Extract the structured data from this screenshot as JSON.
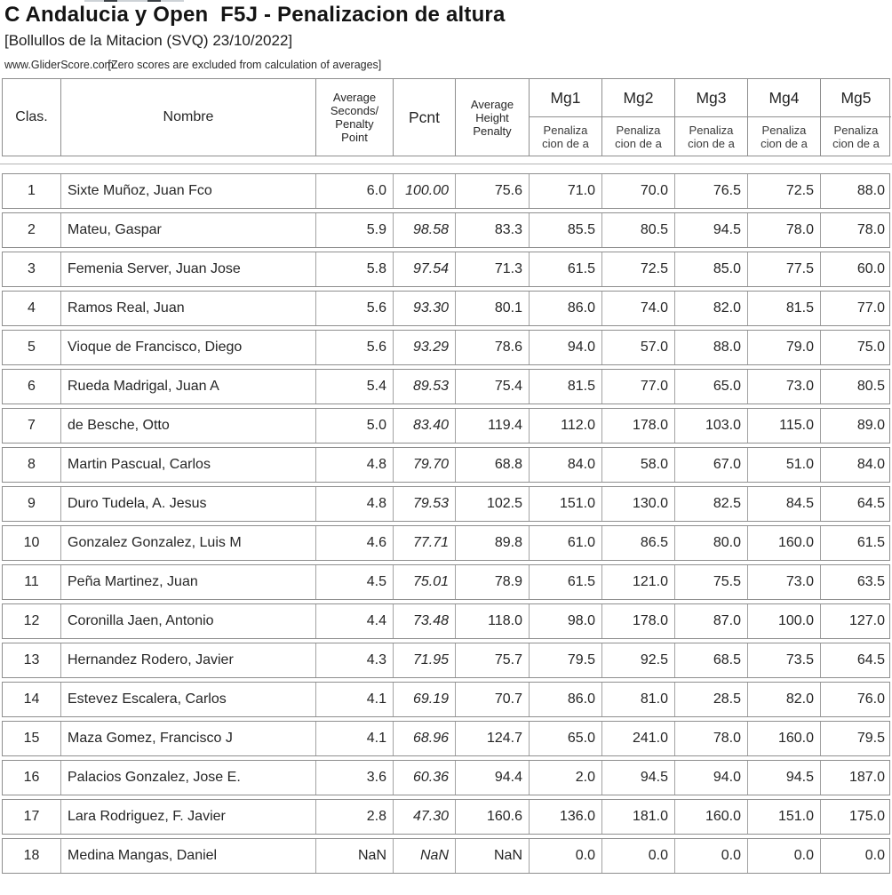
{
  "page": {
    "title": "C Andalucia y Open  F5J - Penalizacion de altura",
    "subtitle": "[Bollullos de la Mitacion (SVQ) 23/10/2022]",
    "source": "www.GliderScore.com",
    "note": "[Zero scores are excluded from calculation of averages]"
  },
  "colors": {
    "border": "#8e8e8e",
    "text": "#262626"
  },
  "table": {
    "headers": {
      "clas": "Clas.",
      "nombre": "Nombre",
      "avg_seconds": "Average\nSeconds/\nPenalty\nPoint",
      "pcnt": "Pcnt",
      "avg_height": "Average\nHeight\nPenalty",
      "mg": [
        "Mg1",
        "Mg2",
        "Mg3",
        "Mg4",
        "Mg5"
      ],
      "mg_sub": "Penaliza\ncion de a"
    },
    "rows": [
      [
        "1",
        "Sixte Muñoz, Juan Fco",
        "6.0",
        "100.00",
        "75.6",
        "71.0",
        "70.0",
        "76.5",
        "72.5",
        "88.0"
      ],
      [
        "2",
        "Mateu, Gaspar",
        "5.9",
        "98.58",
        "83.3",
        "85.5",
        "80.5",
        "94.5",
        "78.0",
        "78.0"
      ],
      [
        "3",
        "Femenia Server, Juan Jose",
        "5.8",
        "97.54",
        "71.3",
        "61.5",
        "72.5",
        "85.0",
        "77.5",
        "60.0"
      ],
      [
        "4",
        "Ramos Real, Juan",
        "5.6",
        "93.30",
        "80.1",
        "86.0",
        "74.0",
        "82.0",
        "81.5",
        "77.0"
      ],
      [
        "5",
        "Vioque de Francisco, Diego",
        "5.6",
        "93.29",
        "78.6",
        "94.0",
        "57.0",
        "88.0",
        "79.0",
        "75.0"
      ],
      [
        "6",
        "Rueda Madrigal, Juan A",
        "5.4",
        "89.53",
        "75.4",
        "81.5",
        "77.0",
        "65.0",
        "73.0",
        "80.5"
      ],
      [
        "7",
        "de Besche, Otto",
        "5.0",
        "83.40",
        "119.4",
        "112.0",
        "178.0",
        "103.0",
        "115.0",
        "89.0"
      ],
      [
        "8",
        "Martin Pascual, Carlos",
        "4.8",
        "79.70",
        "68.8",
        "84.0",
        "58.0",
        "67.0",
        "51.0",
        "84.0"
      ],
      [
        "9",
        "Duro Tudela, A. Jesus",
        "4.8",
        "79.53",
        "102.5",
        "151.0",
        "130.0",
        "82.5",
        "84.5",
        "64.5"
      ],
      [
        "10",
        "Gonzalez Gonzalez, Luis M",
        "4.6",
        "77.71",
        "89.8",
        "61.0",
        "86.5",
        "80.0",
        "160.0",
        "61.5"
      ],
      [
        "11",
        "Peña Martinez, Juan",
        "4.5",
        "75.01",
        "78.9",
        "61.5",
        "121.0",
        "75.5",
        "73.0",
        "63.5"
      ],
      [
        "12",
        "Coronilla Jaen, Antonio",
        "4.4",
        "73.48",
        "118.0",
        "98.0",
        "178.0",
        "87.0",
        "100.0",
        "127.0"
      ],
      [
        "13",
        "Hernandez Rodero, Javier",
        "4.3",
        "71.95",
        "75.7",
        "79.5",
        "92.5",
        "68.5",
        "73.5",
        "64.5"
      ],
      [
        "14",
        "Estevez Escalera, Carlos",
        "4.1",
        "69.19",
        "70.7",
        "86.0",
        "81.0",
        "28.5",
        "82.0",
        "76.0"
      ],
      [
        "15",
        "Maza Gomez, Francisco J",
        "4.1",
        "68.96",
        "124.7",
        "65.0",
        "241.0",
        "78.0",
        "160.0",
        "79.5"
      ],
      [
        "16",
        "Palacios Gonzalez, Jose E.",
        "3.6",
        "60.36",
        "94.4",
        "2.0",
        "94.5",
        "94.0",
        "94.5",
        "187.0"
      ],
      [
        "17",
        "Lara Rodriguez, F. Javier",
        "2.8",
        "47.30",
        "160.6",
        "136.0",
        "181.0",
        "160.0",
        "151.0",
        "175.0"
      ],
      [
        "18",
        "Medina Mangas, Daniel",
        "NaN",
        "NaN",
        "NaN",
        "0.0",
        "0.0",
        "0.0",
        "0.0",
        "0.0"
      ]
    ]
  }
}
